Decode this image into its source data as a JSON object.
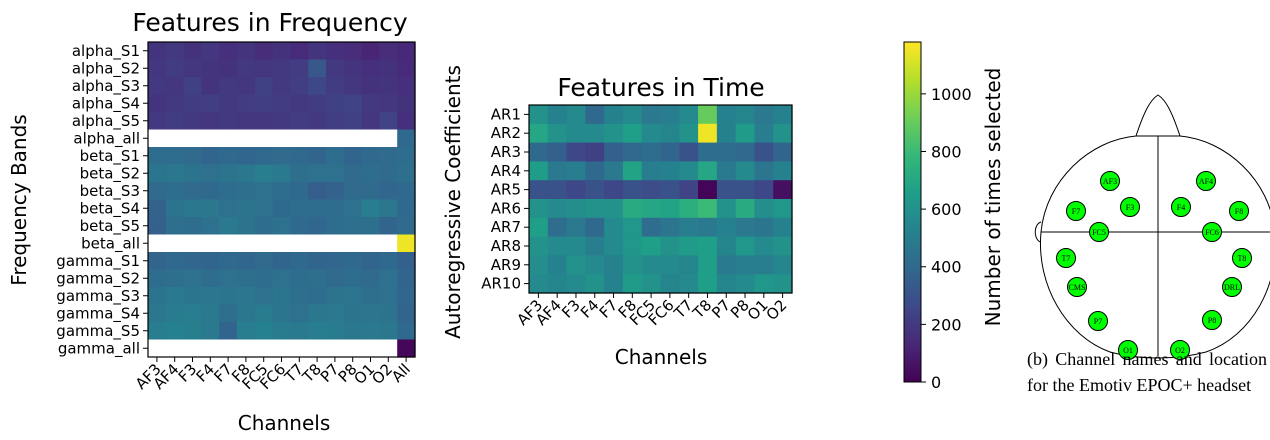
{
  "chart_data": [
    {
      "type": "heatmap",
      "title": "Features in Frequency",
      "xlabel": "Channels",
      "ylabel": "Frequency Bands",
      "x_ticks": [
        "AF3",
        "AF4",
        "F3",
        "F4",
        "F7",
        "F8",
        "FC5",
        "FC6",
        "T7",
        "T8",
        "P7",
        "P8",
        "O1",
        "O2",
        "All"
      ],
      "y_ticks": [
        "alpha_S1",
        "alpha_S2",
        "alpha_S3",
        "alpha_S4",
        "alpha_S5",
        "alpha_all",
        "beta_S1",
        "beta_S2",
        "beta_S3",
        "beta_S4",
        "beta_S5",
        "beta_all",
        "gamma_S1",
        "gamma_S2",
        "gamma_S3",
        "gamma_S4",
        "gamma_S5",
        "gamma_all"
      ],
      "values": [
        [
          180,
          200,
          170,
          190,
          160,
          180,
          150,
          170,
          140,
          180,
          160,
          150,
          120,
          150,
          130
        ],
        [
          190,
          210,
          190,
          180,
          170,
          200,
          190,
          200,
          210,
          320,
          200,
          180,
          160,
          170,
          140
        ],
        [
          200,
          190,
          230,
          180,
          200,
          190,
          230,
          200,
          220,
          260,
          210,
          190,
          170,
          180,
          160
        ],
        [
          180,
          200,
          210,
          220,
          200,
          210,
          220,
          210,
          200,
          210,
          230,
          240,
          200,
          190,
          170
        ],
        [
          200,
          210,
          200,
          190,
          200,
          190,
          190,
          200,
          210,
          200,
          220,
          230,
          190,
          240,
          160
        ],
        [
          null,
          null,
          null,
          null,
          null,
          null,
          null,
          null,
          null,
          null,
          null,
          null,
          null,
          null,
          400
        ],
        [
          420,
          420,
          410,
          380,
          400,
          390,
          400,
          410,
          400,
          380,
          420,
          380,
          400,
          410,
          420
        ],
        [
          460,
          470,
          450,
          440,
          450,
          470,
          500,
          480,
          430,
          440,
          440,
          410,
          420,
          410,
          430
        ],
        [
          410,
          420,
          410,
          400,
          420,
          430,
          440,
          420,
          400,
          350,
          370,
          410,
          410,
          390,
          400
        ],
        [
          370,
          450,
          470,
          470,
          440,
          450,
          440,
          400,
          420,
          420,
          420,
          440,
          500,
          470,
          400
        ],
        [
          360,
          430,
          420,
          440,
          480,
          450,
          420,
          440,
          400,
          390,
          420,
          430,
          430,
          380,
          410
        ],
        [
          null,
          null,
          null,
          null,
          null,
          null,
          null,
          null,
          null,
          null,
          null,
          null,
          null,
          null,
          1150
        ],
        [
          380,
          400,
          390,
          380,
          400,
          390,
          410,
          380,
          400,
          380,
          390,
          400,
          380,
          400,
          360
        ],
        [
          420,
          430,
          440,
          420,
          440,
          430,
          420,
          440,
          420,
          430,
          410,
          420,
          410,
          440,
          380
        ],
        [
          450,
          480,
          460,
          470,
          460,
          470,
          440,
          460,
          430,
          420,
          450,
          460,
          430,
          440,
          390
        ],
        [
          470,
          490,
          500,
          480,
          430,
          470,
          490,
          460,
          440,
          470,
          480,
          450,
          460,
          450,
          380
        ],
        [
          500,
          520,
          510,
          480,
          380,
          500,
          520,
          490,
          480,
          500,
          490,
          470,
          480,
          470,
          400
        ],
        [
          null,
          null,
          null,
          null,
          null,
          null,
          null,
          null,
          null,
          null,
          null,
          null,
          null,
          null,
          20
        ]
      ]
    },
    {
      "type": "heatmap",
      "title": "Features in Time",
      "xlabel": "Channels",
      "ylabel": "Autoregressive Coefficients",
      "x_ticks": [
        "AF3",
        "AF4",
        "F3",
        "F4",
        "F7",
        "F8",
        "FC5",
        "FC6",
        "T7",
        "T8",
        "P7",
        "P8",
        "O1",
        "O2"
      ],
      "y_ticks": [
        "AR1",
        "AR2",
        "AR3",
        "AR4",
        "AR5",
        "AR6",
        "AR7",
        "AR8",
        "AR9",
        "AR10"
      ],
      "values": [
        [
          600,
          520,
          560,
          400,
          520,
          560,
          480,
          500,
          560,
          900,
          520,
          540,
          480,
          520
        ],
        [
          700,
          600,
          560,
          560,
          600,
          660,
          560,
          540,
          600,
          1150,
          520,
          640,
          500,
          600
        ],
        [
          400,
          360,
          260,
          230,
          360,
          400,
          420,
          380,
          300,
          420,
          420,
          400,
          300,
          380
        ],
        [
          650,
          480,
          500,
          400,
          480,
          680,
          500,
          520,
          560,
          700,
          480,
          560,
          460,
          520
        ],
        [
          300,
          300,
          260,
          300,
          260,
          300,
          280,
          300,
          240,
          10,
          300,
          300,
          260,
          50
        ],
        [
          600,
          560,
          580,
          600,
          600,
          720,
          700,
          680,
          740,
          800,
          600,
          720,
          580,
          620
        ],
        [
          660,
          420,
          480,
          400,
          560,
          620,
          420,
          460,
          500,
          480,
          520,
          480,
          460,
          520
        ],
        [
          600,
          560,
          560,
          500,
          560,
          620,
          660,
          600,
          640,
          660,
          540,
          620,
          560,
          600
        ],
        [
          580,
          520,
          600,
          560,
          520,
          600,
          560,
          560,
          540,
          660,
          480,
          500,
          500,
          540
        ],
        [
          560,
          540,
          560,
          600,
          520,
          640,
          600,
          540,
          560,
          660,
          540,
          560,
          620,
          600
        ]
      ]
    }
  ],
  "colorbar": {
    "label": "Number of times selected",
    "min": 0,
    "max": 1180,
    "ticks": [
      0,
      200,
      400,
      600,
      800,
      1000
    ]
  },
  "headset": {
    "left_electrodes": [
      "AF3",
      "F7",
      "F3",
      "FC5",
      "T7",
      "CMS",
      "P7",
      "O1"
    ],
    "right_electrodes": [
      "AF4",
      "F4",
      "F8",
      "FC6",
      "T8",
      "DRL",
      "P8",
      "O2"
    ],
    "caption": "(b) Channel names and location for the Emotiv EPOC+ headset"
  }
}
